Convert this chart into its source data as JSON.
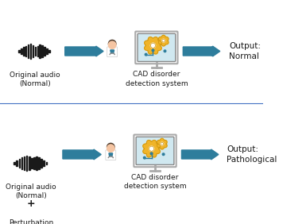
{
  "bg_color": "#ffffff",
  "divider_color": "#4472c4",
  "arrow_color": "#2E7D9C",
  "waveform_color": "#1a1a1a",
  "perturbation_color": "#1a1a1a",
  "text_color": "#1a1a1a",
  "output_normal_color": "#1a1a1a",
  "output_patho_color": "#1a1a1a",
  "row1": {
    "label_audio": "Original audio\n(Normal)",
    "label_system": "CAD disorder\ndetection system",
    "label_output": "Output:\nNormal"
  },
  "row2": {
    "label_audio": "Original audio\n(Normal)",
    "label_plus": "+",
    "label_perturbation": "Perturbation",
    "label_system": "CAD disorder\ndetection system",
    "label_output": "Output:\nPathological"
  },
  "font_size": 6.5,
  "font_size_output": 7.5
}
